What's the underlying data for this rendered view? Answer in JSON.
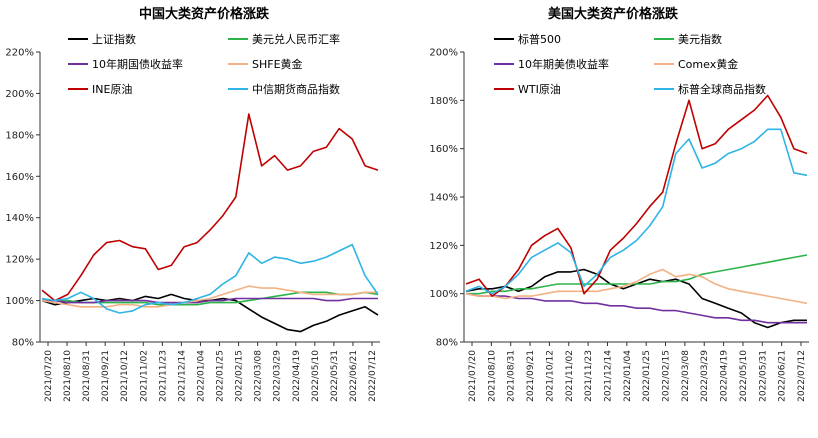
{
  "chart_data": [
    {
      "type": "line",
      "title": "中国大类资产价格涨跌",
      "xlabel": "",
      "ylabel": "",
      "ylim": [
        80,
        220
      ],
      "y_ticks": [
        "80%",
        "100%",
        "120%",
        "140%",
        "160%",
        "180%",
        "200%",
        "220%"
      ],
      "x_ticks": [
        "2021/07/20",
        "2021/08/10",
        "2021/08/31",
        "2021/09/21",
        "2021/10/12",
        "2021/11/02",
        "2021/11/23",
        "2021/12/14",
        "2022/01/04",
        "2022/01/25",
        "2022/02/15",
        "2022/03/08",
        "2022/03/29",
        "2022/04/19",
        "2022/05/10",
        "2022/05/31",
        "2022/06/21",
        "2022/07/12"
      ],
      "legend_position": "top",
      "series": [
        {
          "name": "上证指数",
          "color": "#000000",
          "values": [
            100,
            98,
            99,
            100,
            101,
            100,
            101,
            100,
            102,
            101,
            103,
            101,
            100,
            100,
            101,
            100,
            96,
            92,
            89,
            86,
            85,
            88,
            90,
            93,
            95,
            97,
            93
          ]
        },
        {
          "name": "美元兑人民币汇率",
          "color": "#2db34a",
          "values": [
            100,
            100,
            100,
            99,
            99,
            99,
            99,
            99,
            99,
            98,
            98,
            98,
            98,
            99,
            99,
            99,
            100,
            101,
            102,
            103,
            104,
            104,
            104,
            103,
            103,
            104,
            103
          ]
        },
        {
          "name": "10年期国债收益率",
          "color": "#7030a0",
          "values": [
            100,
            100,
            99,
            99,
            99,
            100,
            100,
            100,
            100,
            99,
            99,
            99,
            99,
            100,
            100,
            101,
            101,
            101,
            101,
            101,
            101,
            101,
            100,
            100,
            101,
            101,
            101
          ]
        },
        {
          "name": "SHFE黄金",
          "color": "#f4b183",
          "values": [
            100,
            99,
            98,
            97,
            97,
            97,
            98,
            98,
            97,
            97,
            98,
            99,
            100,
            101,
            103,
            105,
            107,
            106,
            106,
            105,
            104,
            103,
            103,
            103,
            103,
            104,
            104
          ]
        },
        {
          "name": "INE原油",
          "color": "#c00000",
          "values": [
            105,
            100,
            103,
            112,
            122,
            128,
            129,
            126,
            125,
            115,
            117,
            126,
            128,
            134,
            141,
            150,
            190,
            165,
            170,
            163,
            165,
            172,
            174,
            183,
            178,
            165,
            163
          ]
        },
        {
          "name": "中信期货商品指数",
          "color": "#2eb4e6",
          "values": [
            101,
            100,
            101,
            104,
            101,
            96,
            94,
            95,
            98,
            99,
            98,
            99,
            101,
            103,
            108,
            112,
            123,
            118,
            121,
            120,
            118,
            119,
            121,
            124,
            127,
            112,
            103
          ]
        }
      ]
    },
    {
      "type": "line",
      "title": "美国大类资产价格涨跌",
      "xlabel": "",
      "ylabel": "",
      "ylim": [
        80,
        200
      ],
      "y_ticks": [
        "80%",
        "100%",
        "120%",
        "140%",
        "160%",
        "180%",
        "200%"
      ],
      "x_ticks": [
        "2021/07/20",
        "2021/08/10",
        "2021/08/31",
        "2021/09/21",
        "2021/10/12",
        "2021/11/02",
        "2021/11/23",
        "2021/12/14",
        "2022/01/04",
        "2022/01/25",
        "2022/02/15",
        "2022/03/08",
        "2022/03/29",
        "2022/04/19",
        "2022/05/10",
        "2022/05/31",
        "2022/06/21",
        "2022/07/12"
      ],
      "legend_position": "top",
      "series": [
        {
          "name": "标普500",
          "color": "#000000",
          "values": [
            101,
            102,
            102,
            103,
            101,
            103,
            107,
            109,
            109,
            110,
            108,
            104,
            102,
            104,
            106,
            105,
            106,
            104,
            98,
            96,
            94,
            92,
            88,
            86,
            88,
            89,
            89
          ]
        },
        {
          "name": "美元指数",
          "color": "#2db34a",
          "values": [
            100,
            100,
            101,
            101,
            102,
            102,
            103,
            104,
            104,
            104,
            104,
            104,
            104,
            104,
            104,
            105,
            105,
            106,
            108,
            109,
            110,
            111,
            112,
            113,
            114,
            115,
            116
          ]
        },
        {
          "name": "10年期美债收益率",
          "color": "#7030a0",
          "values": [
            100,
            99,
            99,
            99,
            98,
            98,
            97,
            97,
            97,
            96,
            96,
            95,
            95,
            94,
            94,
            93,
            93,
            92,
            91,
            90,
            90,
            89,
            89,
            88,
            88,
            88,
            88
          ]
        },
        {
          "name": "Comex黄金",
          "color": "#f4b183",
          "values": [
            100,
            99,
            99,
            98,
            99,
            99,
            100,
            101,
            101,
            101,
            101,
            102,
            103,
            105,
            108,
            110,
            107,
            108,
            107,
            104,
            102,
            101,
            100,
            99,
            98,
            97,
            96
          ]
        },
        {
          "name": "WTI原油",
          "color": "#c00000",
          "values": [
            104,
            106,
            99,
            103,
            110,
            120,
            124,
            127,
            119,
            100,
            106,
            118,
            123,
            129,
            136,
            142,
            162,
            180,
            160,
            162,
            168,
            172,
            176,
            182,
            173,
            160,
            158
          ]
        },
        {
          "name": "标普全球商品指数",
          "color": "#2eb4e6",
          "values": [
            101,
            103,
            100,
            103,
            108,
            115,
            118,
            121,
            117,
            103,
            108,
            115,
            118,
            122,
            128,
            136,
            158,
            164,
            152,
            154,
            158,
            160,
            163,
            168,
            168,
            150,
            149
          ]
        }
      ]
    }
  ]
}
